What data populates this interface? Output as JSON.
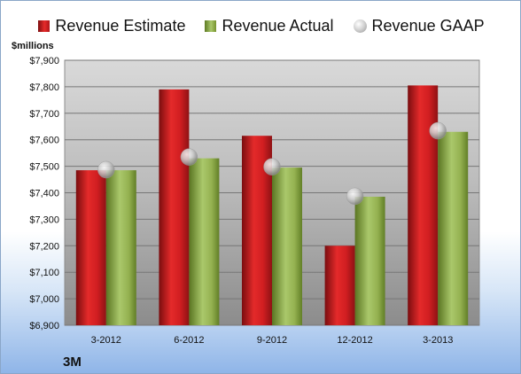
{
  "chart_data": {
    "type": "bar",
    "categories": [
      "3-2012",
      "6-2012",
      "9-2012",
      "12-2012",
      "3-2013"
    ],
    "series": [
      {
        "name": "Revenue Estimate",
        "type": "bar",
        "color": "#c8191c",
        "values": [
          7485,
          7790,
          7615,
          7200,
          7805
        ]
      },
      {
        "name": "Revenue Actual",
        "type": "bar",
        "color": "#8fac47",
        "values": [
          7485,
          7530,
          7495,
          7385,
          7630
        ]
      },
      {
        "name": "Revenue GAAP",
        "type": "marker",
        "color": "#b4b4b4",
        "values": [
          7487,
          7535,
          7498,
          7387,
          7634
        ]
      }
    ],
    "ylim": [
      6900,
      7900
    ],
    "yticks": [
      6900,
      7000,
      7100,
      7200,
      7300,
      7400,
      7500,
      7600,
      7700,
      7800,
      7900
    ],
    "ytick_labels": [
      "$6,900",
      "$7,000",
      "$7,100",
      "$7,200",
      "$7,300",
      "$7,400",
      "$7,500",
      "$7,600",
      "$7,700",
      "$7,800",
      "$7,900"
    ],
    "ylabel": "$millions",
    "legend_position": "top",
    "grid": true
  },
  "legend": {
    "estimate": "Revenue Estimate",
    "actual": "Revenue Actual",
    "gaap": "Revenue GAAP"
  },
  "units_label": "$millions",
  "company": "3M"
}
